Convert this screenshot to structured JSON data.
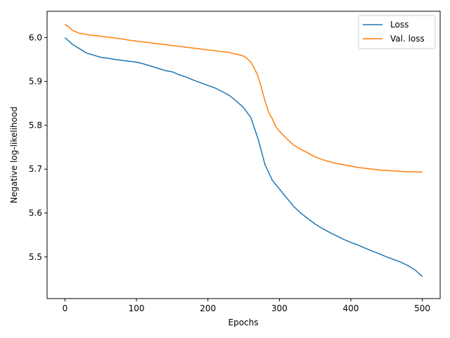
{
  "chart_data": {
    "type": "line",
    "title": "",
    "xlabel": "Epochs",
    "ylabel": "Negative log-likelihood",
    "xlim": [
      -25,
      525
    ],
    "ylim": [
      5.405,
      6.06
    ],
    "xticks": [
      0,
      100,
      200,
      300,
      400,
      500
    ],
    "yticks": [
      5.5,
      5.6,
      5.7,
      5.8,
      5.9,
      6.0
    ],
    "grid": false,
    "legend_position": "top-right",
    "series": [
      {
        "name": "Loss",
        "color": "#1f77b4",
        "points": [
          [
            0,
            6.0
          ],
          [
            10,
            5.985
          ],
          [
            20,
            5.975
          ],
          [
            30,
            5.965
          ],
          [
            40,
            5.96
          ],
          [
            50,
            5.955
          ],
          [
            60,
            5.953
          ],
          [
            70,
            5.95
          ],
          [
            80,
            5.948
          ],
          [
            90,
            5.946
          ],
          [
            100,
            5.944
          ],
          [
            110,
            5.94
          ],
          [
            120,
            5.935
          ],
          [
            130,
            5.93
          ],
          [
            140,
            5.925
          ],
          [
            150,
            5.922
          ],
          [
            160,
            5.915
          ],
          [
            170,
            5.91
          ],
          [
            180,
            5.903
          ],
          [
            190,
            5.897
          ],
          [
            200,
            5.891
          ],
          [
            210,
            5.885
          ],
          [
            220,
            5.877
          ],
          [
            230,
            5.868
          ],
          [
            240,
            5.855
          ],
          [
            250,
            5.84
          ],
          [
            260,
            5.818
          ],
          [
            270,
            5.77
          ],
          [
            280,
            5.71
          ],
          [
            290,
            5.675
          ],
          [
            300,
            5.655
          ],
          [
            310,
            5.635
          ],
          [
            320,
            5.615
          ],
          [
            330,
            5.6
          ],
          [
            340,
            5.587
          ],
          [
            350,
            5.575
          ],
          [
            360,
            5.565
          ],
          [
            370,
            5.556
          ],
          [
            380,
            5.548
          ],
          [
            390,
            5.54
          ],
          [
            400,
            5.533
          ],
          [
            410,
            5.527
          ],
          [
            420,
            5.52
          ],
          [
            430,
            5.513
          ],
          [
            440,
            5.507
          ],
          [
            450,
            5.5
          ],
          [
            460,
            5.494
          ],
          [
            470,
            5.488
          ],
          [
            480,
            5.48
          ],
          [
            490,
            5.47
          ],
          [
            500,
            5.455
          ]
        ]
      },
      {
        "name": "Val. loss",
        "color": "#ff7f0e",
        "points": [
          [
            0,
            6.03
          ],
          [
            5,
            6.025
          ],
          [
            10,
            6.017
          ],
          [
            20,
            6.01
          ],
          [
            30,
            6.007
          ],
          [
            40,
            6.005
          ],
          [
            50,
            6.003
          ],
          [
            60,
            6.001
          ],
          [
            70,
            5.999
          ],
          [
            80,
            5.997
          ],
          [
            90,
            5.994
          ],
          [
            100,
            5.992
          ],
          [
            110,
            5.99
          ],
          [
            120,
            5.988
          ],
          [
            130,
            5.986
          ],
          [
            140,
            5.984
          ],
          [
            150,
            5.982
          ],
          [
            160,
            5.98
          ],
          [
            170,
            5.978
          ],
          [
            180,
            5.976
          ],
          [
            190,
            5.974
          ],
          [
            200,
            5.972
          ],
          [
            210,
            5.97
          ],
          [
            220,
            5.968
          ],
          [
            230,
            5.966
          ],
          [
            240,
            5.962
          ],
          [
            250,
            5.958
          ],
          [
            255,
            5.952
          ],
          [
            260,
            5.944
          ],
          [
            265,
            5.93
          ],
          [
            270,
            5.912
          ],
          [
            275,
            5.885
          ],
          [
            280,
            5.855
          ],
          [
            285,
            5.83
          ],
          [
            290,
            5.815
          ],
          [
            295,
            5.797
          ],
          [
            300,
            5.787
          ],
          [
            310,
            5.77
          ],
          [
            320,
            5.755
          ],
          [
            330,
            5.745
          ],
          [
            340,
            5.737
          ],
          [
            350,
            5.728
          ],
          [
            360,
            5.722
          ],
          [
            370,
            5.717
          ],
          [
            380,
            5.713
          ],
          [
            390,
            5.71
          ],
          [
            400,
            5.707
          ],
          [
            410,
            5.704
          ],
          [
            420,
            5.702
          ],
          [
            430,
            5.7
          ],
          [
            440,
            5.698
          ],
          [
            450,
            5.697
          ],
          [
            460,
            5.696
          ],
          [
            470,
            5.695
          ],
          [
            480,
            5.694
          ],
          [
            490,
            5.694
          ],
          [
            500,
            5.693
          ]
        ]
      }
    ]
  }
}
